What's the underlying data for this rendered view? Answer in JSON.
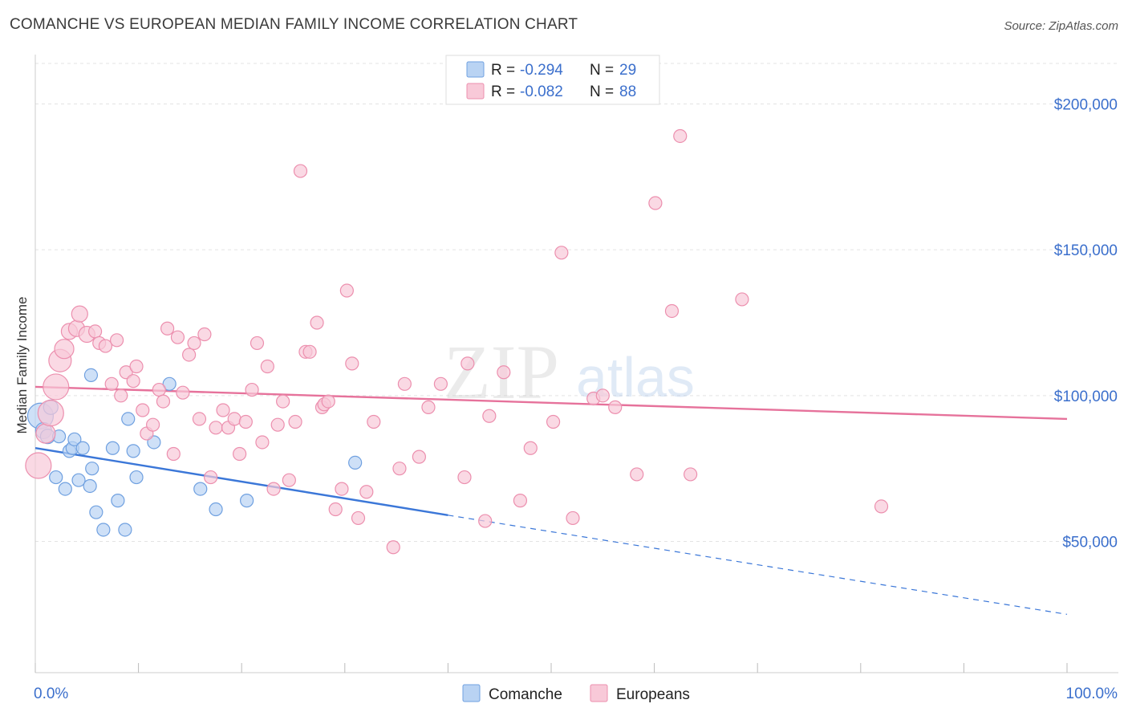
{
  "title": "COMANCHE VS EUROPEAN MEDIAN FAMILY INCOME CORRELATION CHART",
  "source": "Source: ZipAtlas.com",
  "watermark": {
    "left": "ZIP",
    "right": "atlas"
  },
  "legend": {
    "rows": [
      {
        "r_label": "R =",
        "r_value": "-0.294",
        "n_label": "N =",
        "n_value": "29",
        "color": "#6fa0e0",
        "fill": "#b9d3f3"
      },
      {
        "r_label": "R =",
        "r_value": "-0.082",
        "n_label": "N =",
        "n_value": "88",
        "color": "#ec8fae",
        "fill": "#f8c9d8"
      }
    ]
  },
  "bottom_legend": [
    {
      "label": "Comanche",
      "fill": "#b9d3f3",
      "stroke": "#6fa0e0"
    },
    {
      "label": "Europeans",
      "fill": "#f8c9d8",
      "stroke": "#ec8fae"
    }
  ],
  "chart_data": {
    "type": "scatter",
    "title": "COMANCHE VS EUROPEAN MEDIAN FAMILY INCOME CORRELATION CHART",
    "xlabel": "",
    "ylabel": "Median Family Income",
    "x_tick_labels": [
      "0.0%",
      "100.0%"
    ],
    "y_tick_labels": [
      "$50,000",
      "$100,000",
      "$150,000",
      "$200,000"
    ],
    "xlim": [
      0,
      100
    ],
    "ylim": [
      5000,
      215000
    ],
    "y_ticks": [
      50000,
      100000,
      150000,
      200000
    ],
    "grid": true,
    "legend_position": "top-center",
    "series": [
      {
        "name": "Comanche",
        "color": "#3b77d8",
        "marker_fill": "#b9d3f3",
        "marker_stroke": "#6fa0e0",
        "trend": {
          "x0": 0,
          "y0": 82000,
          "x1": 40,
          "y1": 59000,
          "dashed_to_x": 100,
          "dashed_to_y": 25000
        },
        "points": [
          {
            "x": 0.5,
            "y": 93000,
            "s": 16
          },
          {
            "x": 0.8,
            "y": 88000,
            "s": 10
          },
          {
            "x": 1.2,
            "y": 86000,
            "s": 9
          },
          {
            "x": 1.5,
            "y": 96000,
            "s": 9
          },
          {
            "x": 2.0,
            "y": 72000,
            "s": 8
          },
          {
            "x": 2.3,
            "y": 86000,
            "s": 8
          },
          {
            "x": 2.9,
            "y": 68000,
            "s": 8
          },
          {
            "x": 3.3,
            "y": 81000,
            "s": 8
          },
          {
            "x": 3.6,
            "y": 82000,
            "s": 8
          },
          {
            "x": 3.8,
            "y": 85000,
            "s": 8
          },
          {
            "x": 4.2,
            "y": 71000,
            "s": 8
          },
          {
            "x": 4.6,
            "y": 82000,
            "s": 8
          },
          {
            "x": 5.3,
            "y": 69000,
            "s": 8
          },
          {
            "x": 5.9,
            "y": 60000,
            "s": 8
          },
          {
            "x": 5.5,
            "y": 75000,
            "s": 8
          },
          {
            "x": 6.6,
            "y": 54000,
            "s": 8
          },
          {
            "x": 5.4,
            "y": 107000,
            "s": 8
          },
          {
            "x": 7.5,
            "y": 82000,
            "s": 8
          },
          {
            "x": 8.0,
            "y": 64000,
            "s": 8
          },
          {
            "x": 8.7,
            "y": 54000,
            "s": 8
          },
          {
            "x": 9.5,
            "y": 81000,
            "s": 8
          },
          {
            "x": 9.8,
            "y": 72000,
            "s": 8
          },
          {
            "x": 11.5,
            "y": 84000,
            "s": 8
          },
          {
            "x": 9.0,
            "y": 92000,
            "s": 8
          },
          {
            "x": 13.0,
            "y": 104000,
            "s": 8
          },
          {
            "x": 16.0,
            "y": 68000,
            "s": 8
          },
          {
            "x": 17.5,
            "y": 61000,
            "s": 8
          },
          {
            "x": 20.5,
            "y": 64000,
            "s": 8
          },
          {
            "x": 31.0,
            "y": 77000,
            "s": 8
          }
        ]
      },
      {
        "name": "Europeans",
        "color": "#e6729b",
        "marker_fill": "#f8c9d8",
        "marker_stroke": "#ec8fae",
        "trend": {
          "x0": 0,
          "y0": 103000,
          "x1": 100,
          "y1": 92000
        },
        "points": [
          {
            "x": 0.3,
            "y": 76000,
            "s": 16
          },
          {
            "x": 1.0,
            "y": 87000,
            "s": 12
          },
          {
            "x": 1.5,
            "y": 94000,
            "s": 16
          },
          {
            "x": 2.0,
            "y": 103000,
            "s": 16
          },
          {
            "x": 2.4,
            "y": 112000,
            "s": 14
          },
          {
            "x": 2.8,
            "y": 116000,
            "s": 12
          },
          {
            "x": 3.3,
            "y": 122000,
            "s": 10
          },
          {
            "x": 4.0,
            "y": 123000,
            "s": 10
          },
          {
            "x": 4.3,
            "y": 128000,
            "s": 10
          },
          {
            "x": 5.0,
            "y": 121000,
            "s": 10
          },
          {
            "x": 5.8,
            "y": 122000,
            "s": 8
          },
          {
            "x": 6.2,
            "y": 118000,
            "s": 8
          },
          {
            "x": 6.8,
            "y": 117000,
            "s": 8
          },
          {
            "x": 7.4,
            "y": 104000,
            "s": 8
          },
          {
            "x": 7.9,
            "y": 119000,
            "s": 8
          },
          {
            "x": 8.3,
            "y": 100000,
            "s": 8
          },
          {
            "x": 8.8,
            "y": 108000,
            "s": 8
          },
          {
            "x": 9.5,
            "y": 105000,
            "s": 8
          },
          {
            "x": 9.8,
            "y": 110000,
            "s": 8
          },
          {
            "x": 10.4,
            "y": 95000,
            "s": 8
          },
          {
            "x": 10.8,
            "y": 87000,
            "s": 8
          },
          {
            "x": 11.4,
            "y": 90000,
            "s": 8
          },
          {
            "x": 12.0,
            "y": 102000,
            "s": 8
          },
          {
            "x": 12.4,
            "y": 98000,
            "s": 8
          },
          {
            "x": 12.8,
            "y": 123000,
            "s": 8
          },
          {
            "x": 13.4,
            "y": 80000,
            "s": 8
          },
          {
            "x": 13.8,
            "y": 120000,
            "s": 8
          },
          {
            "x": 14.3,
            "y": 101000,
            "s": 8
          },
          {
            "x": 14.9,
            "y": 114000,
            "s": 8
          },
          {
            "x": 15.4,
            "y": 118000,
            "s": 8
          },
          {
            "x": 15.9,
            "y": 92000,
            "s": 8
          },
          {
            "x": 16.4,
            "y": 121000,
            "s": 8
          },
          {
            "x": 17.0,
            "y": 72000,
            "s": 8
          },
          {
            "x": 17.5,
            "y": 89000,
            "s": 8
          },
          {
            "x": 18.2,
            "y": 95000,
            "s": 8
          },
          {
            "x": 18.7,
            "y": 89000,
            "s": 8
          },
          {
            "x": 19.3,
            "y": 92000,
            "s": 8
          },
          {
            "x": 19.8,
            "y": 80000,
            "s": 8
          },
          {
            "x": 20.4,
            "y": 91000,
            "s": 8
          },
          {
            "x": 21.0,
            "y": 102000,
            "s": 8
          },
          {
            "x": 21.5,
            "y": 118000,
            "s": 8
          },
          {
            "x": 22.0,
            "y": 84000,
            "s": 8
          },
          {
            "x": 22.5,
            "y": 110000,
            "s": 8
          },
          {
            "x": 23.1,
            "y": 68000,
            "s": 8
          },
          {
            "x": 23.5,
            "y": 90000,
            "s": 8
          },
          {
            "x": 24.0,
            "y": 98000,
            "s": 8
          },
          {
            "x": 24.6,
            "y": 71000,
            "s": 8
          },
          {
            "x": 25.2,
            "y": 91000,
            "s": 8
          },
          {
            "x": 25.7,
            "y": 177000,
            "s": 8
          },
          {
            "x": 26.2,
            "y": 115000,
            "s": 8
          },
          {
            "x": 26.6,
            "y": 115000,
            "s": 8
          },
          {
            "x": 27.3,
            "y": 125000,
            "s": 8
          },
          {
            "x": 27.8,
            "y": 96000,
            "s": 8
          },
          {
            "x": 28.0,
            "y": 97000,
            "s": 8
          },
          {
            "x": 28.4,
            "y": 98000,
            "s": 8
          },
          {
            "x": 29.1,
            "y": 61000,
            "s": 8
          },
          {
            "x": 29.7,
            "y": 68000,
            "s": 8
          },
          {
            "x": 30.2,
            "y": 136000,
            "s": 8
          },
          {
            "x": 30.7,
            "y": 111000,
            "s": 8
          },
          {
            "x": 31.3,
            "y": 58000,
            "s": 8
          },
          {
            "x": 32.1,
            "y": 67000,
            "s": 8
          },
          {
            "x": 32.8,
            "y": 91000,
            "s": 8
          },
          {
            "x": 34.7,
            "y": 48000,
            "s": 8
          },
          {
            "x": 35.3,
            "y": 75000,
            "s": 8
          },
          {
            "x": 35.8,
            "y": 104000,
            "s": 8
          },
          {
            "x": 37.2,
            "y": 79000,
            "s": 8
          },
          {
            "x": 38.1,
            "y": 96000,
            "s": 8
          },
          {
            "x": 39.3,
            "y": 104000,
            "s": 8
          },
          {
            "x": 41.6,
            "y": 72000,
            "s": 8
          },
          {
            "x": 41.9,
            "y": 111000,
            "s": 8
          },
          {
            "x": 43.6,
            "y": 57000,
            "s": 8
          },
          {
            "x": 45.4,
            "y": 108000,
            "s": 8
          },
          {
            "x": 47.0,
            "y": 64000,
            "s": 8
          },
          {
            "x": 48.0,
            "y": 82000,
            "s": 8
          },
          {
            "x": 50.2,
            "y": 91000,
            "s": 8
          },
          {
            "x": 51.0,
            "y": 149000,
            "s": 8
          },
          {
            "x": 52.1,
            "y": 58000,
            "s": 8
          },
          {
            "x": 54.1,
            "y": 99000,
            "s": 8
          },
          {
            "x": 56.2,
            "y": 96000,
            "s": 8
          },
          {
            "x": 58.3,
            "y": 73000,
            "s": 8
          },
          {
            "x": 60.1,
            "y": 166000,
            "s": 8
          },
          {
            "x": 61.7,
            "y": 129000,
            "s": 8
          },
          {
            "x": 62.5,
            "y": 189000,
            "s": 8
          },
          {
            "x": 63.5,
            "y": 73000,
            "s": 8
          },
          {
            "x": 68.5,
            "y": 133000,
            "s": 8
          },
          {
            "x": 82.0,
            "y": 62000,
            "s": 8
          },
          {
            "x": 55.0,
            "y": 100000,
            "s": 8
          },
          {
            "x": 44.0,
            "y": 93000,
            "s": 8
          }
        ]
      }
    ]
  }
}
